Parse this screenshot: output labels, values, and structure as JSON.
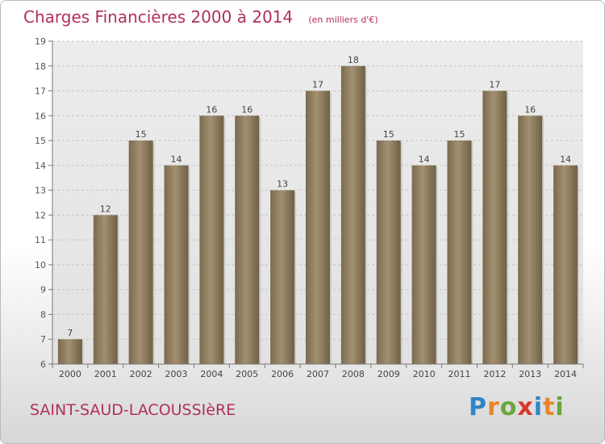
{
  "title": "Charges Financières 2000 à 2014",
  "unit_note": "(en milliers d'€)",
  "town": "SAINT-SAUD-LACOUSSIèRE",
  "brand": {
    "letters": [
      "P",
      "r",
      "o",
      "x",
      "i",
      "t",
      "i"
    ],
    "colors": [
      "#2f86c8",
      "#e8862a",
      "#6aa63a",
      "#d9352b",
      "#2f86c8",
      "#e8862a",
      "#6aa63a"
    ]
  },
  "chart_data": {
    "type": "bar",
    "categories": [
      "2000",
      "2001",
      "2002",
      "2003",
      "2004",
      "2005",
      "2006",
      "2007",
      "2008",
      "2009",
      "2010",
      "2011",
      "2012",
      "2013",
      "2014"
    ],
    "values": [
      7,
      12,
      15,
      14,
      16,
      16,
      13,
      17,
      18,
      15,
      14,
      15,
      17,
      16,
      14
    ],
    "data_labels": [
      "7",
      "12",
      "15",
      "14",
      "16",
      "16",
      "13",
      "17",
      "18",
      "15",
      "14",
      "15",
      "17",
      "16",
      "14"
    ],
    "ylim": [
      6,
      19
    ],
    "yticks": [
      "6",
      "7",
      "8",
      "9",
      "10",
      "11",
      "12",
      "13",
      "14",
      "15",
      "16",
      "17",
      "18",
      "19"
    ],
    "grid": true,
    "bar_color": "#8b7a5c"
  }
}
